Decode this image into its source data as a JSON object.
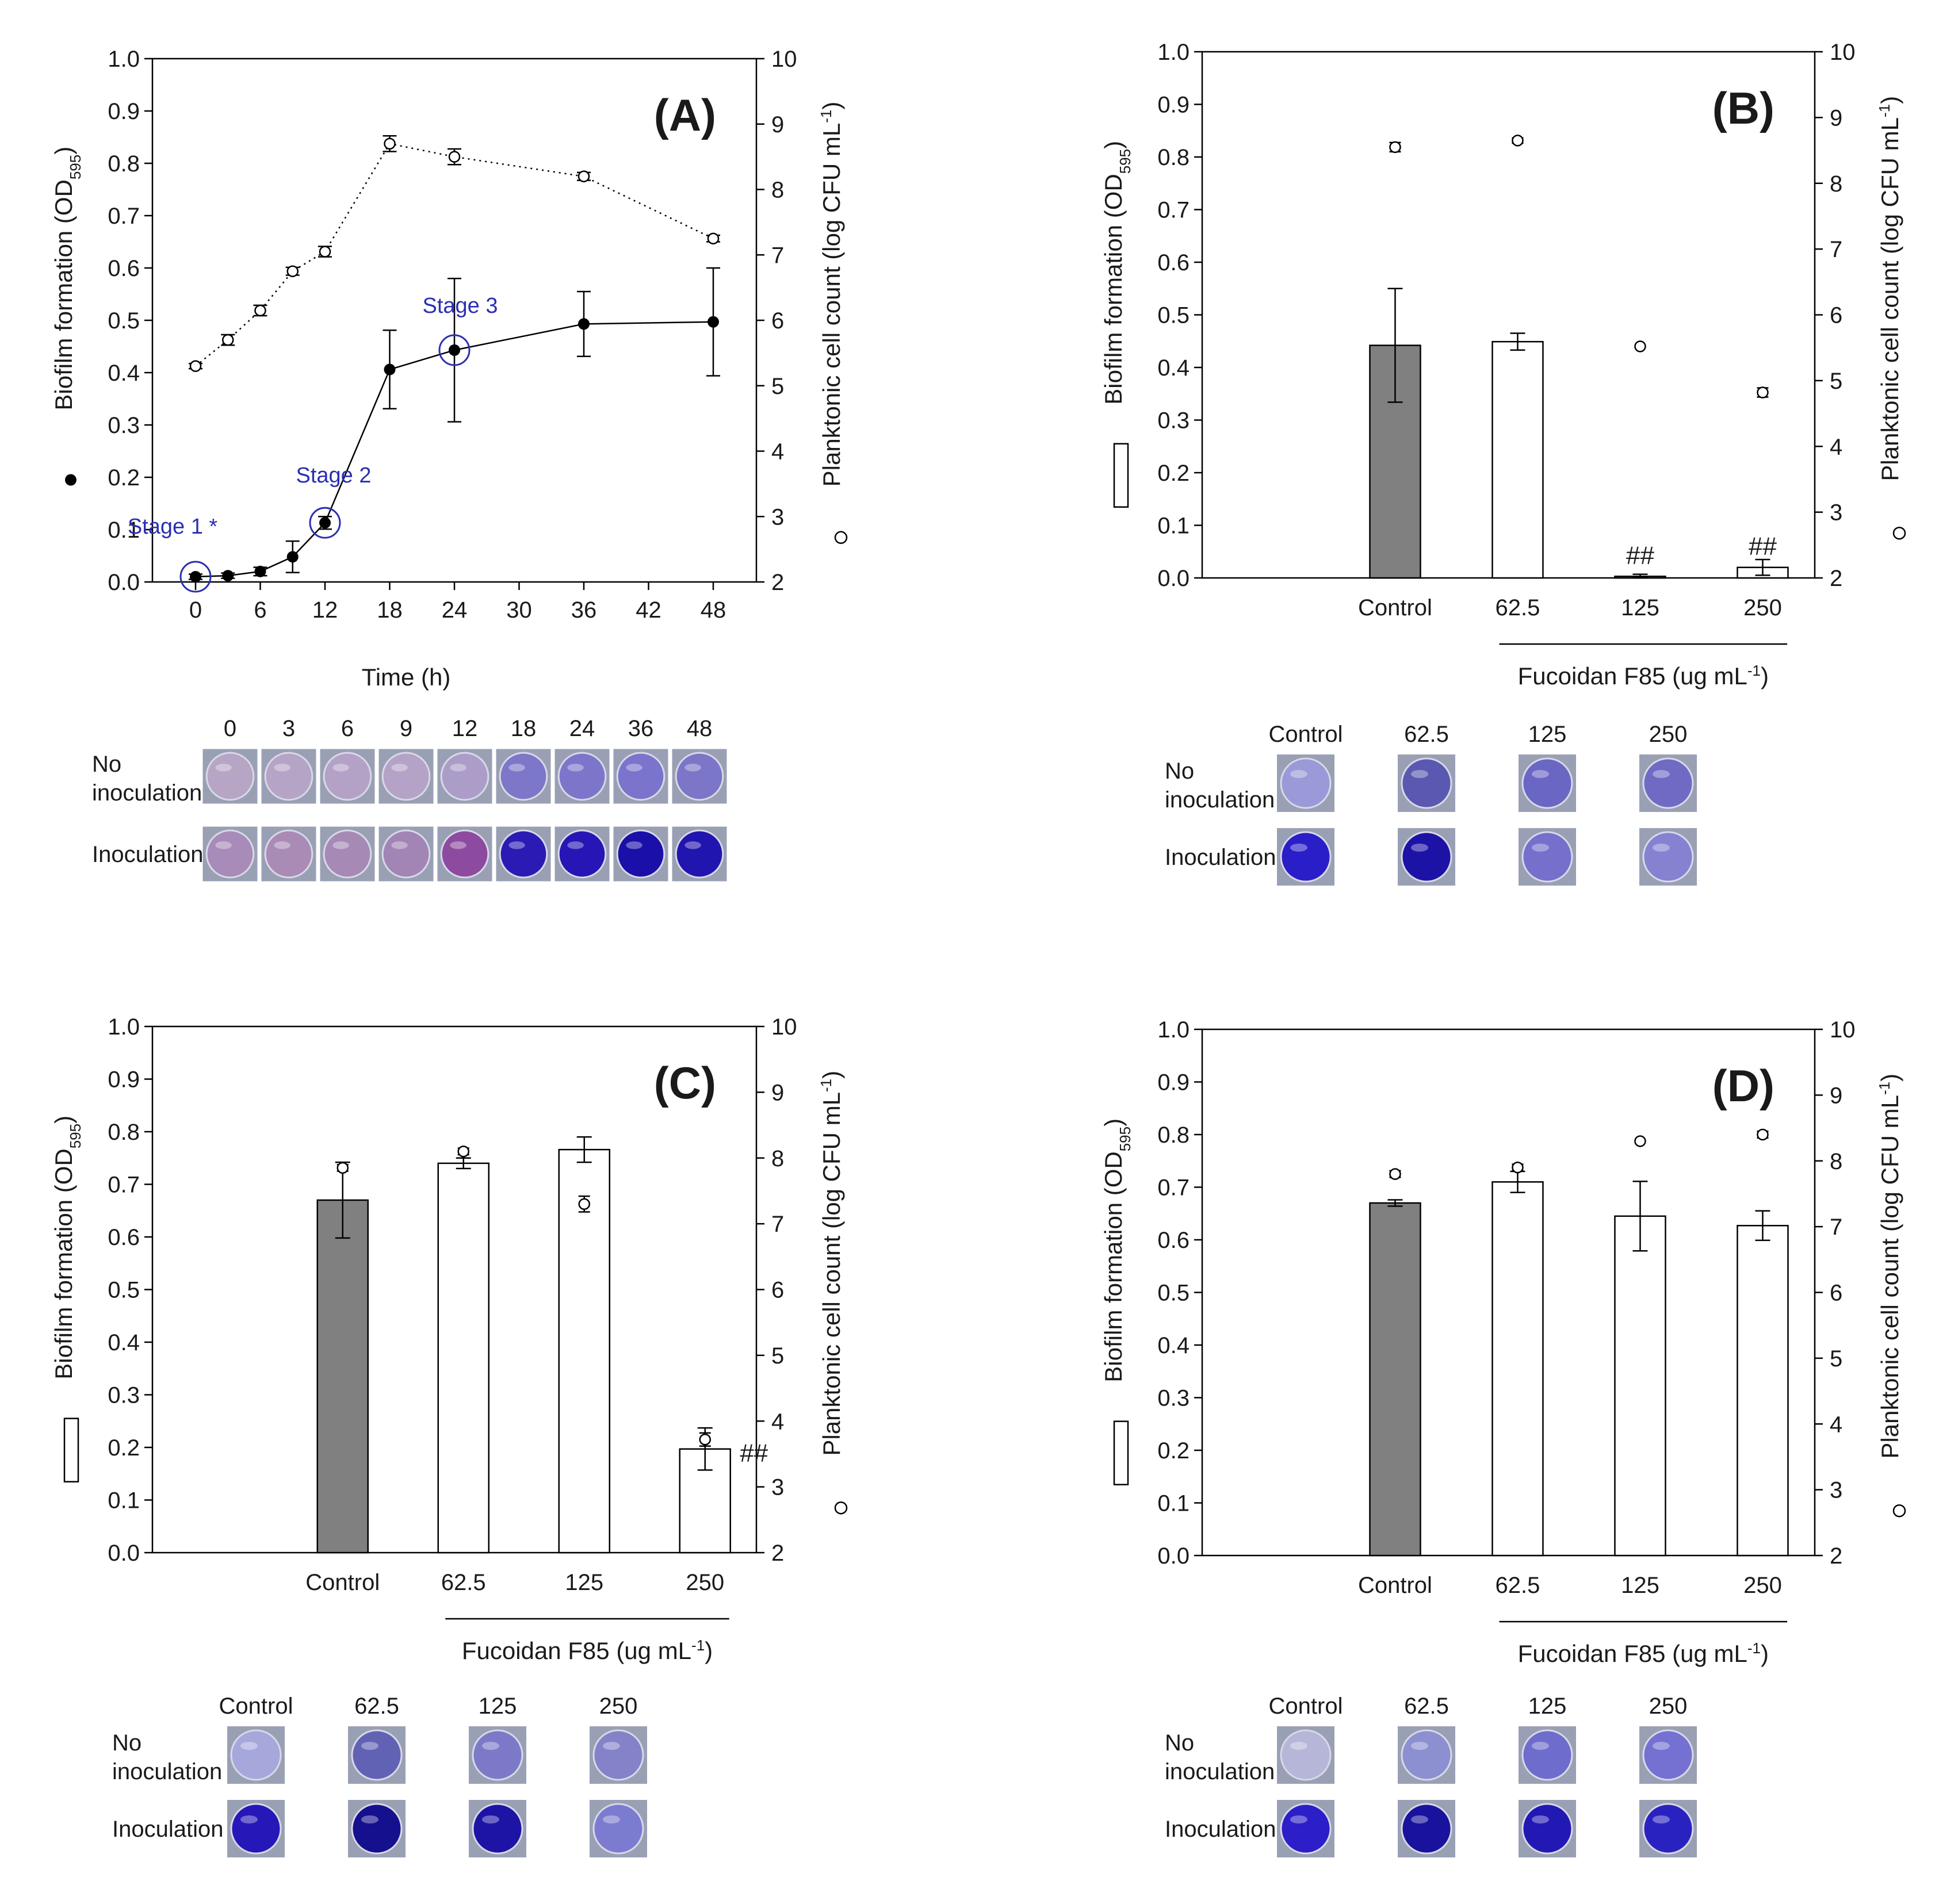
{
  "chart_data": [
    {
      "panel": "(A)",
      "type": "line",
      "xlabel": "Time (h)",
      "ylabel_left": "Biofilm formation (OD595)",
      "ylabel_right": "Planktonic cell count (log CFU mL-1)",
      "xlim": [
        -4,
        52
      ],
      "xticks": [
        0,
        6,
        12,
        18,
        24,
        30,
        36,
        42,
        48
      ],
      "ylim": [
        0,
        1.0
      ],
      "y2lim": [
        2,
        10
      ],
      "series": [
        {
          "name": "Biofilm formation",
          "marker": "filled",
          "axis": "left",
          "x": [
            0,
            3,
            6,
            9,
            12,
            18,
            24,
            36,
            48
          ],
          "values": [
            0.01,
            0.012,
            0.02,
            0.048,
            0.113,
            0.406,
            0.443,
            0.493,
            0.497
          ],
          "err": [
            0.005,
            0.005,
            0.008,
            0.03,
            0.012,
            0.075,
            0.137,
            0.062,
            0.103
          ]
        },
        {
          "name": "Planktonic cell count",
          "marker": "open",
          "axis": "right",
          "x": [
            0,
            3,
            6,
            9,
            12,
            18,
            24,
            36,
            48
          ],
          "values": [
            5.3,
            5.7,
            6.15,
            6.75,
            7.05,
            8.7,
            8.5,
            8.2,
            7.25
          ],
          "err": [
            0.04,
            0.08,
            0.08,
            0.06,
            0.08,
            0.12,
            0.12,
            0.06,
            0.05
          ]
        }
      ],
      "annotations": [
        {
          "text": "Stage 1 *",
          "x": 0
        },
        {
          "text": "Stage 2",
          "x": 12
        },
        {
          "text": "Stage 3",
          "x": 24
        }
      ],
      "well_labels": [
        "0",
        "3",
        "6",
        "9",
        "12",
        "18",
        "24",
        "36",
        "48"
      ],
      "row_no": "No inoculation",
      "row_yes": "Inoculation",
      "well_colors_no": [
        "#b6a5c4",
        "#b5a4c5",
        "#b3a2c6",
        "#b4a3c6",
        "#ab9dc8",
        "#7d77c9",
        "#7c76cb",
        "#7a74cc",
        "#7b76c8"
      ],
      "well_colors_yes": [
        "#a88bb8",
        "#a98bb6",
        "#a789b6",
        "#a284b5",
        "#8d4b9f",
        "#2a1bb5",
        "#2616b6",
        "#1a0fa8",
        "#2115b0"
      ]
    },
    {
      "panel": "(B)",
      "type": "bar",
      "categories": [
        "Control",
        "62.5",
        "125",
        "250"
      ],
      "xlabel": "Fucoidan F85 (ug mL-1)",
      "ylabel_left": "Biofilm formation (OD595)",
      "ylabel_right": "Planktonic cell count (log CFU mL-1)",
      "ylim": [
        0,
        1.0
      ],
      "y2lim": [
        2,
        10
      ],
      "bars": [
        0.442,
        0.449,
        0.003,
        0.02
      ],
      "bar_err": [
        0.108,
        0.016,
        0.004,
        0.015
      ],
      "plank": [
        8.55,
        8.65,
        5.52,
        4.82
      ],
      "plank_err": [
        0.07,
        0.04,
        0.0,
        0.07
      ],
      "hash": [
        "",
        "",
        "##",
        "##"
      ],
      "well_labels": [
        "Control",
        "62.5",
        "125",
        "250"
      ],
      "row_no": "No inoculation",
      "row_yes": "Inoculation",
      "well_colors_no": [
        "#9a9ad8",
        "#5a58b0",
        "#6a66c4",
        "#6f6ac4"
      ],
      "well_colors_yes": [
        "#2a1ec8",
        "#1c12a6",
        "#7470cc",
        "#8582d2"
      ]
    },
    {
      "panel": "(C)",
      "type": "bar",
      "categories": [
        "Control",
        "62.5",
        "125",
        "250"
      ],
      "xlabel": "Fucoidan F85 (ug mL-1)",
      "ylabel_left": "Biofilm formation (OD595)",
      "ylabel_right": "Planktonic cell count (log CFU mL-1)",
      "ylim": [
        0,
        1.0
      ],
      "y2lim": [
        2,
        10
      ],
      "bars": [
        0.67,
        0.74,
        0.766,
        0.197
      ],
      "bar_err": [
        0.072,
        0.01,
        0.024,
        0.04
      ],
      "plank": [
        7.85,
        8.1,
        7.3,
        3.72
      ],
      "plank_err": [
        0.05,
        0.05,
        0.12,
        0.1
      ],
      "hash": [
        "",
        "",
        "",
        "##"
      ],
      "well_labels": [
        "Control",
        "62.5",
        "125",
        "250"
      ],
      "row_no": "No inoculation",
      "row_yes": "Inoculation",
      "well_colors_no": [
        "#a6a8dc",
        "#6262b4",
        "#7c7ac8",
        "#8482c8"
      ],
      "well_colors_yes": [
        "#2618b8",
        "#15108e",
        "#1d14a6",
        "#7b7cd0"
      ]
    },
    {
      "panel": "(D)",
      "type": "bar",
      "categories": [
        "Control",
        "62.5",
        "125",
        "250"
      ],
      "xlabel": "Fucoidan F85 (ug mL-1)",
      "ylabel_left": "Biofilm formation (OD595)",
      "ylabel_right": "Planktonic cell count (log CFU mL-1)",
      "ylim": [
        0,
        1.0
      ],
      "y2lim": [
        2,
        10
      ],
      "bars": [
        0.67,
        0.71,
        0.645,
        0.627
      ],
      "bar_err": [
        0.006,
        0.02,
        0.066,
        0.028
      ],
      "plank": [
        7.8,
        7.9,
        8.3,
        8.4
      ],
      "plank_err": [
        0.05,
        0.05,
        0.0,
        0.05
      ],
      "hash": [
        "",
        "",
        "",
        ""
      ],
      "well_labels": [
        "Control",
        "62.5",
        "125",
        "250"
      ],
      "row_no": "No inoculation",
      "row_yes": "Inoculation",
      "well_colors_no": [
        "#b6b6d8",
        "#8c8fd0",
        "#6e6ccc",
        "#7471d2"
      ],
      "well_colors_yes": [
        "#2c1ec8",
        "#19129e",
        "#2218b4",
        "#2a22c0"
      ]
    }
  ]
}
